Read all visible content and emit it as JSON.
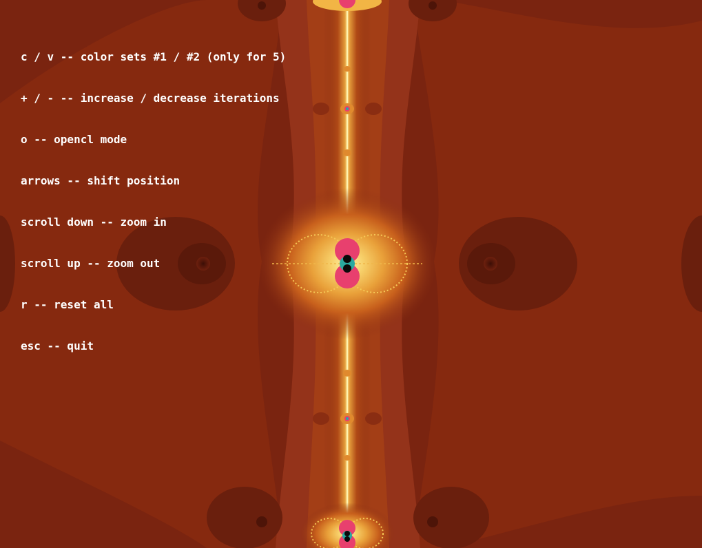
{
  "help": {
    "lines": [
      "c / v -- color sets #1 / #2 (only for 5)",
      "+ / - -- increase / decrease iterations",
      "o -- opencl mode",
      "arrows -- shift position",
      "scroll down -- zoom in",
      "scroll up -- zoom out",
      "r -- reset all",
      "esc -- quit"
    ]
  },
  "colors": {
    "background": "#7a2410",
    "band_dark": "#6e200e",
    "band_mid": "#8a2d12",
    "band_light": "#a33a14",
    "glow_orange": "#d9781e",
    "glow_yellow": "#f7d06a",
    "core_pink": "#e8406e",
    "core_teal": "#2aa9a0",
    "core_black": "#0a0a0a",
    "text": "#ffffff"
  }
}
